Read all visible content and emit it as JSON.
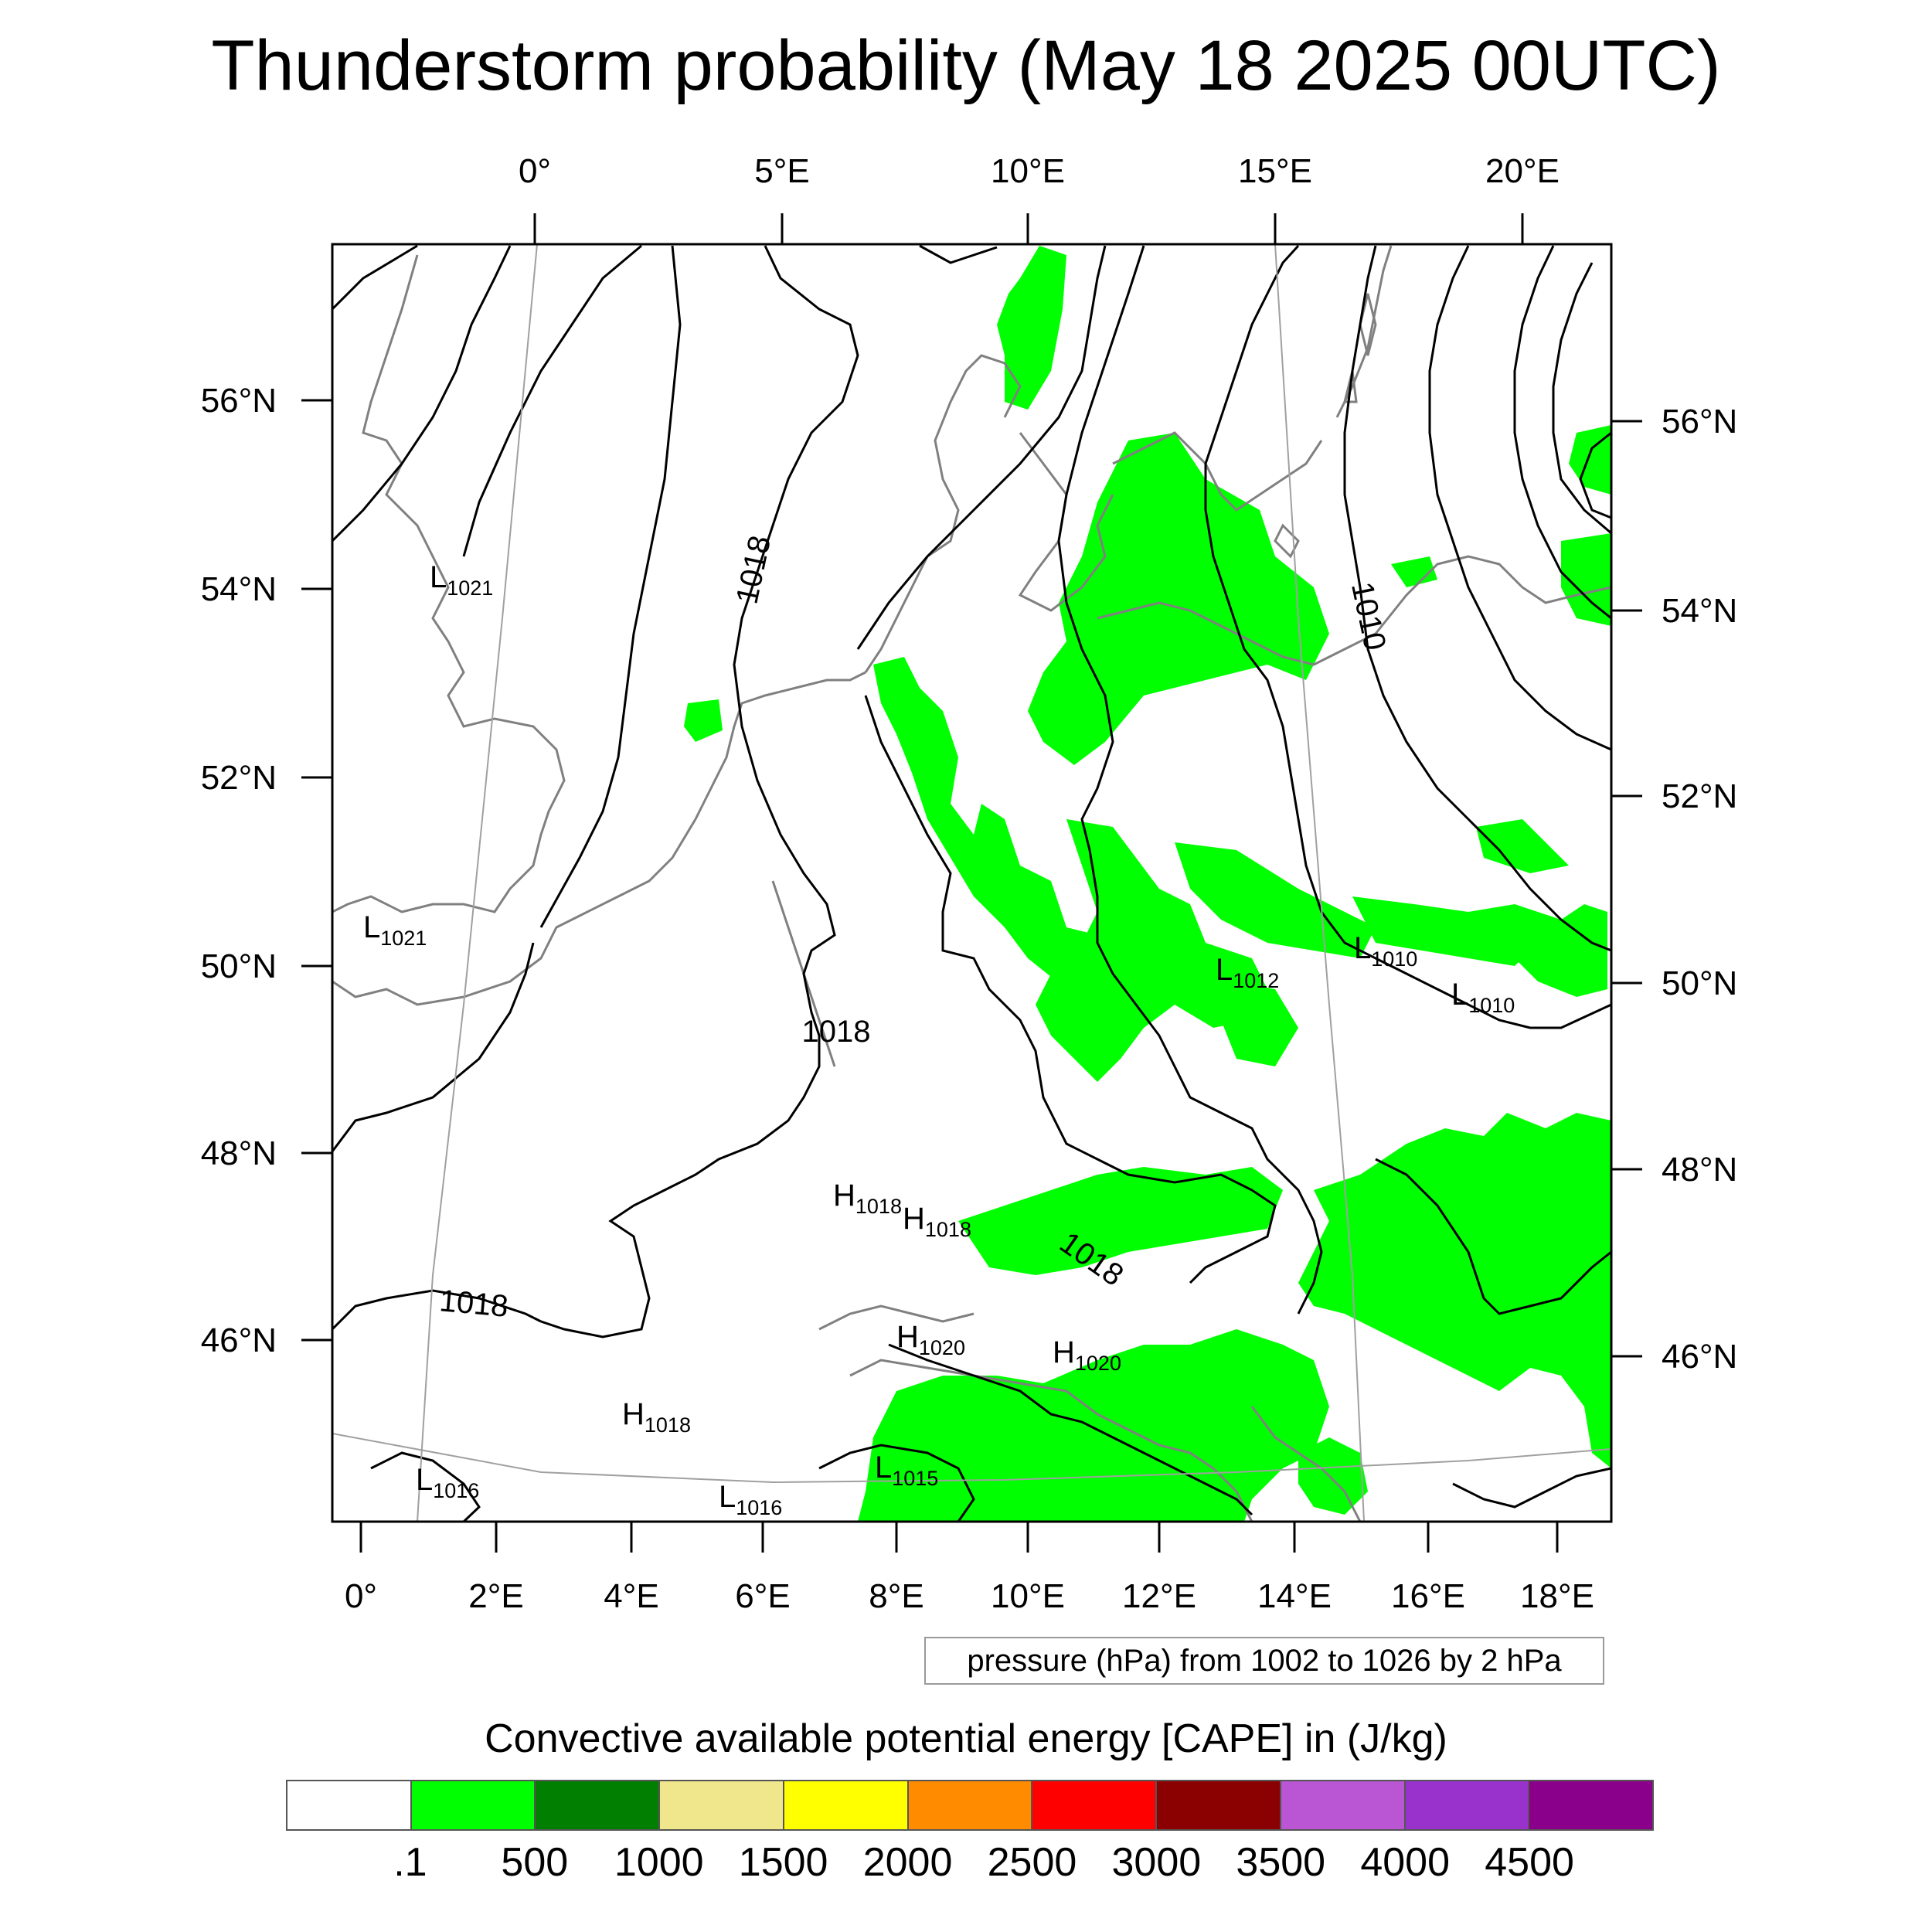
{
  "title": "Thunderstorm probability (May 18 2025 00UTC)",
  "top_lon_labels": [
    "0°",
    "5°E",
    "10°E",
    "15°E",
    "20°E"
  ],
  "bottom_lon_labels": [
    "0°",
    "2°E",
    "4°E",
    "6°E",
    "8°E",
    "10°E",
    "12°E",
    "14°E",
    "16°E",
    "18°E"
  ],
  "left_lat_labels": [
    "56°N",
    "54°N",
    "52°N",
    "50°N",
    "48°N",
    "46°N"
  ],
  "right_lat_labels": [
    "56°N",
    "54°N",
    "52°N",
    "50°N",
    "48°N",
    "46°N"
  ],
  "contour_value_labels": [
    "1018",
    "1018",
    "1018",
    "1018",
    "1010"
  ],
  "pressure_centers": [
    {
      "type": "L",
      "value": "1021"
    },
    {
      "type": "L",
      "value": "1021"
    },
    {
      "type": "L",
      "value": "1012"
    },
    {
      "type": "L",
      "value": "1010"
    },
    {
      "type": "L",
      "value": "1010"
    },
    {
      "type": "H",
      "value": "1018"
    },
    {
      "type": "H",
      "value": "1018"
    },
    {
      "type": "H",
      "value": "1020"
    },
    {
      "type": "H",
      "value": "1020"
    },
    {
      "type": "H",
      "value": "1018"
    },
    {
      "type": "L",
      "value": "1016"
    },
    {
      "type": "L",
      "value": "1016"
    },
    {
      "type": "L",
      "value": "1015"
    }
  ],
  "info_text": "pressure (hPa) from 1002 to 1026 by 2 hPa",
  "colorbar": {
    "label": "Convective available potential energy [CAPE] in (J/kg)",
    "colors": [
      "#ffffff",
      "#00ff00",
      "#007f00",
      "#f0e68c",
      "#ffff00",
      "#ff8c00",
      "#ff0000",
      "#8b0000",
      "#ba55d3",
      "#9932cc",
      "#8b008b"
    ],
    "tick_labels": [
      ".1",
      "500",
      "1000",
      "1500",
      "2000",
      "2500",
      "3000",
      "3500",
      "4000",
      "4500"
    ]
  },
  "colors": {
    "cape_fill": "#00ff00",
    "coastline": "#808080",
    "isobar": "#000000",
    "graticule": "#a0a0a0"
  }
}
